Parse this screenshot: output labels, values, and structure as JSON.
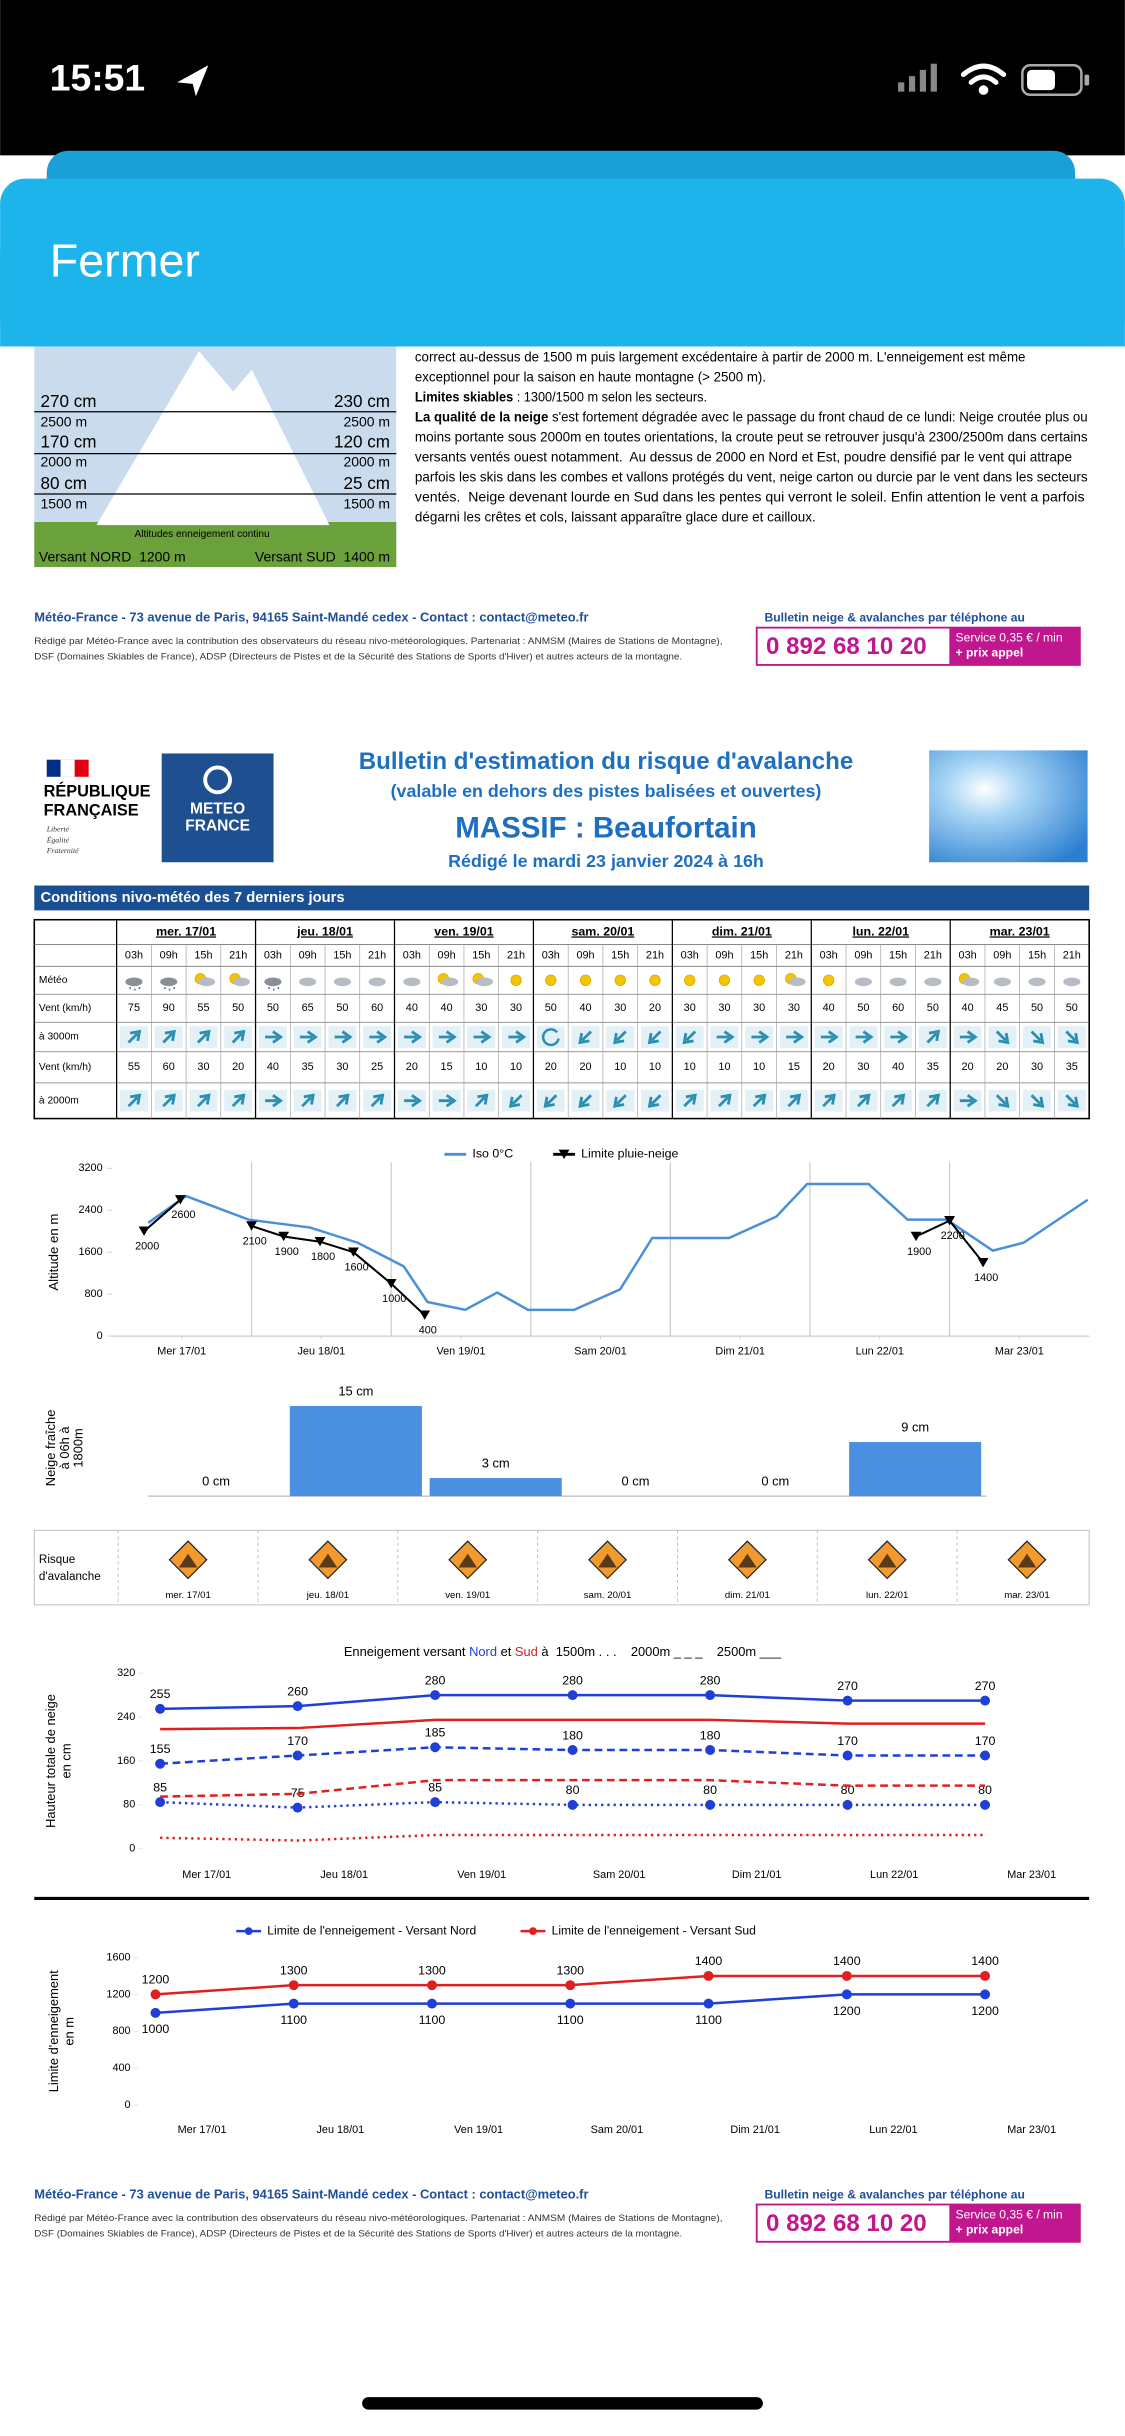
{
  "status_bar": {
    "time": "15:51"
  },
  "header": {
    "close": "Fermer"
  },
  "page1": {
    "diagram": {
      "north": [
        "270 cm",
        "2500 m",
        "170 cm",
        "2000 m",
        "80 cm",
        "1500 m"
      ],
      "south": [
        "230 cm",
        "2500 m",
        "120 cm",
        "2000 m",
        "25 cm",
        "1500 m"
      ],
      "caption": "Altitudes enneigement continu",
      "north_base": "Versant NORD  1200 m",
      "south_base": "Versant SUD  1400 m"
    },
    "text_lines": [
      {
        "text": "correct au-dessus de 1500 m puis largement excédentaire à partir de 2000 m. L'enneigement est même"
      },
      {
        "text": "exceptionnel pour la saison en haute montagne (> 2500 m)."
      },
      {
        "bold": "Limites skiables",
        "text": " : 1300/1500 m selon les secteurs."
      },
      {
        "bold": "La qualité de la neige",
        "text": " s'est fortement dégradée avec le passage du front chaud de ce lundi: Neige croutée plus ou"
      },
      {
        "text": "moins portante sous 2000m en toutes orientations, la croute peut se retrouver jusqu'à 2300/2500m dans certains"
      },
      {
        "text": "versants ventés ouest notamment.  Au dessus de 2000 en Nord et Est, poudre densifié par le vent qui attrape"
      },
      {
        "text": "parfois les skis dans les combes et vallons protégés du vent, neige carton ou durcie par le vent dans les secteurs"
      },
      {
        "text": "ventés.  Neige devenant lourde en Sud dans les pentes qui verront le soleil. Enfin attention le vent a parfois"
      },
      {
        "text": "dégarni les crêtes et cols, laissant apparaître glace dure et cailloux."
      }
    ]
  },
  "footer": {
    "address": "Météo-France - 73 avenue de Paris, 94165 Saint-Mandé cedex - Contact : contact@meteo.fr",
    "partners": [
      "Rédigé par Météo-France avec la contribution des observateurs du réseau nivo-météorologiques. Partenariat : ANMSM (Maires de Stations de Montagne),",
      "DSF (Domaines Skiables de France), ADSP (Directeurs de Pistes et de la Sécurité des Stations de Sports d'Hiver) et autres acteurs de la montagne."
    ],
    "phone_caption": "Bulletin neige & avalanches par téléphone au",
    "phone": "0 892 68 10 20",
    "service": [
      "Service 0,35 € / min",
      "+ prix appel"
    ]
  },
  "bulletin": {
    "republique": [
      "RÉPUBLIQUE",
      "FRANÇAISE"
    ],
    "motto": [
      "Liberté",
      "Égalité",
      "Fraternité"
    ],
    "logo": [
      "METEO",
      "FRANCE"
    ],
    "title": "Bulletin d'estimation du risque d'avalanche",
    "subtitle": "(valable en dehors des pistes balisées et ouvertes)",
    "massif": "MASSIF : Beaufortain",
    "date": "Rédigé le mardi 23 janvier 2024 à 16h"
  },
  "conditions": {
    "title": "Conditions nivo-météo des 7 derniers jours",
    "days": [
      "mer. 17/01",
      "jeu. 18/01",
      "ven. 19/01",
      "sam. 20/01",
      "dim. 21/01",
      "lun. 22/01",
      "mar. 23/01"
    ],
    "hours": [
      "03h",
      "09h",
      "15h",
      "21h"
    ],
    "row_labels": [
      "Météo",
      "Vent (km/h)",
      "à 3000m",
      "Vent (km/h)",
      "à 2000m"
    ],
    "wind_3000": [
      75,
      90,
      55,
      50,
      50,
      65,
      50,
      60,
      40,
      40,
      30,
      30,
      50,
      40,
      30,
      20,
      30,
      30,
      30,
      30,
      40,
      50,
      60,
      50,
      40,
      45,
      50,
      50
    ],
    "wind_2000": [
      55,
      60,
      30,
      20,
      40,
      35,
      30,
      25,
      20,
      15,
      10,
      10,
      20,
      20,
      10,
      10,
      10,
      10,
      10,
      15,
      20,
      30,
      40,
      35,
      20,
      20,
      30,
      35
    ]
  },
  "risk": {
    "label": [
      "Risque",
      "d'avalanche"
    ],
    "days": [
      "mer. 17/01",
      "jeu. 18/01",
      "ven. 19/01",
      "sam. 20/01",
      "dim. 21/01",
      "lun. 22/01",
      "mar. 23/01"
    ]
  },
  "chart_data": [
    {
      "type": "line",
      "ylabel": "Altitude en m",
      "ylim": [
        0,
        3200
      ],
      "yticks": [
        0,
        800,
        1600,
        2400,
        3200
      ],
      "xlim": [
        0,
        7
      ],
      "xticks": [
        {
          "value": 0.5,
          "label": "Mer 17/01"
        },
        {
          "value": 1.5,
          "label": "Jeu 18/01"
        },
        {
          "value": 2.5,
          "label": "Ven 19/01"
        },
        {
          "value": 3.5,
          "label": "Sam 20/01"
        },
        {
          "value": 4.5,
          "label": "Dim 21/01"
        },
        {
          "value": 5.5,
          "label": "Lun 22/01"
        },
        {
          "value": 6.5,
          "label": "Mar 23/01"
        }
      ],
      "series": [
        {
          "name": "Iso 0°C",
          "color": "#4a90d9",
          "x": [
            0.26,
            0.53,
            0.98,
            1.42,
            1.76,
            2.09,
            2.26,
            2.53,
            2.76,
            2.98,
            3.31,
            3.64,
            3.87,
            4.42,
            4.76,
            4.98,
            5.42,
            5.7,
            5.98,
            6.31,
            6.53,
            6.99
          ],
          "values": [
            2160,
            2670,
            2220,
            2070,
            1780,
            1330,
            650,
            500,
            830,
            500,
            500,
            890,
            1870,
            1870,
            2280,
            2900,
            2900,
            2220,
            2220,
            1630,
            1780,
            2600
          ]
        },
        {
          "name": "Limite pluie-neige",
          "color": "#000000",
          "markers": true,
          "labels": true,
          "x": [
            0.23,
            0.49,
            null,
            1.0,
            1.23,
            1.49,
            1.73,
            2.0,
            2.24,
            null,
            5.76,
            6.0,
            6.24
          ],
          "values": [
            2000,
            2600,
            null,
            2100,
            1900,
            1800,
            1600,
            1000,
            400,
            null,
            1900,
            2200,
            1400
          ]
        }
      ]
    },
    {
      "type": "bar",
      "ylabel": [
        "Neige fraîche",
        "à 06h à",
        "1800m"
      ],
      "color": "#4a8fe0",
      "values": [
        0,
        15,
        3,
        0,
        0,
        9
      ],
      "value_labels": [
        "0 cm",
        "15 cm",
        "3 cm",
        "0 cm",
        "0 cm",
        "9 cm"
      ]
    },
    {
      "type": "line",
      "title_parts": [
        "Enneigement versant ",
        "Nord",
        " et ",
        "Sud",
        " à  1500m . . .    2000m _ _ _    2500m ___"
      ],
      "ylabel": [
        "Hauteur totale de neige",
        "en cm"
      ],
      "ylim": [
        0,
        320
      ],
      "yticks": [
        0,
        80,
        160,
        240,
        320
      ],
      "categories": [
        "Mer 17/01",
        "Jeu 18/01",
        "Ven 19/01",
        "Sam 20/01",
        "Dim 21/01",
        "Lun 22/01",
        "Mar 23/01"
      ],
      "series": [
        {
          "color": "#1f3fd6",
          "linestyle": "solid",
          "markers": true,
          "labels": true,
          "values": [
            255,
            260,
            280,
            280,
            280,
            270,
            270
          ]
        },
        {
          "color": "#1f3fd6",
          "linestyle": "dashed",
          "markers": true,
          "labels": true,
          "values": [
            155,
            170,
            185,
            180,
            180,
            170,
            170
          ]
        },
        {
          "color": "#1f3fd6",
          "linestyle": "dotted",
          "markers": true,
          "labels": true,
          "values": [
            85,
            75,
            85,
            80,
            80,
            80,
            80
          ]
        },
        {
          "color": "#e02020",
          "linestyle": "solid",
          "values": [
            218,
            220,
            235,
            235,
            235,
            228,
            228
          ]
        },
        {
          "color": "#e02020",
          "linestyle": "dashed",
          "values": [
            95,
            100,
            125,
            125,
            125,
            115,
            115
          ]
        },
        {
          "color": "#e02020",
          "linestyle": "dotted",
          "values": [
            20,
            15,
            25,
            25,
            25,
            25,
            25
          ]
        }
      ]
    },
    {
      "type": "line",
      "legend": "top",
      "ylabel": [
        "Limite d'enneigement",
        "en m"
      ],
      "ylim": [
        0,
        1600
      ],
      "yticks": [
        0,
        400,
        800,
        1200,
        1600
      ],
      "categories": [
        "Mer 17/01",
        "Jeu 18/01",
        "Ven 19/01",
        "Sam 20/01",
        "Dim 21/01",
        "Lun 22/01",
        "Mar 23/01"
      ],
      "series": [
        {
          "name": "Limite de l'enneigement - Versant Nord",
          "color": "#1f3fd6",
          "markers": true,
          "labels": true,
          "label_side": "below",
          "values": [
            1000,
            1100,
            1100,
            1100,
            1100,
            1200,
            1200
          ]
        },
        {
          "name": "Limite de l'enneigement - Versant Sud",
          "color": "#e02020",
          "markers": true,
          "labels": true,
          "label_side": "above",
          "values": [
            1200,
            1300,
            1300,
            1300,
            1400,
            1400,
            1400
          ]
        }
      ]
    }
  ]
}
